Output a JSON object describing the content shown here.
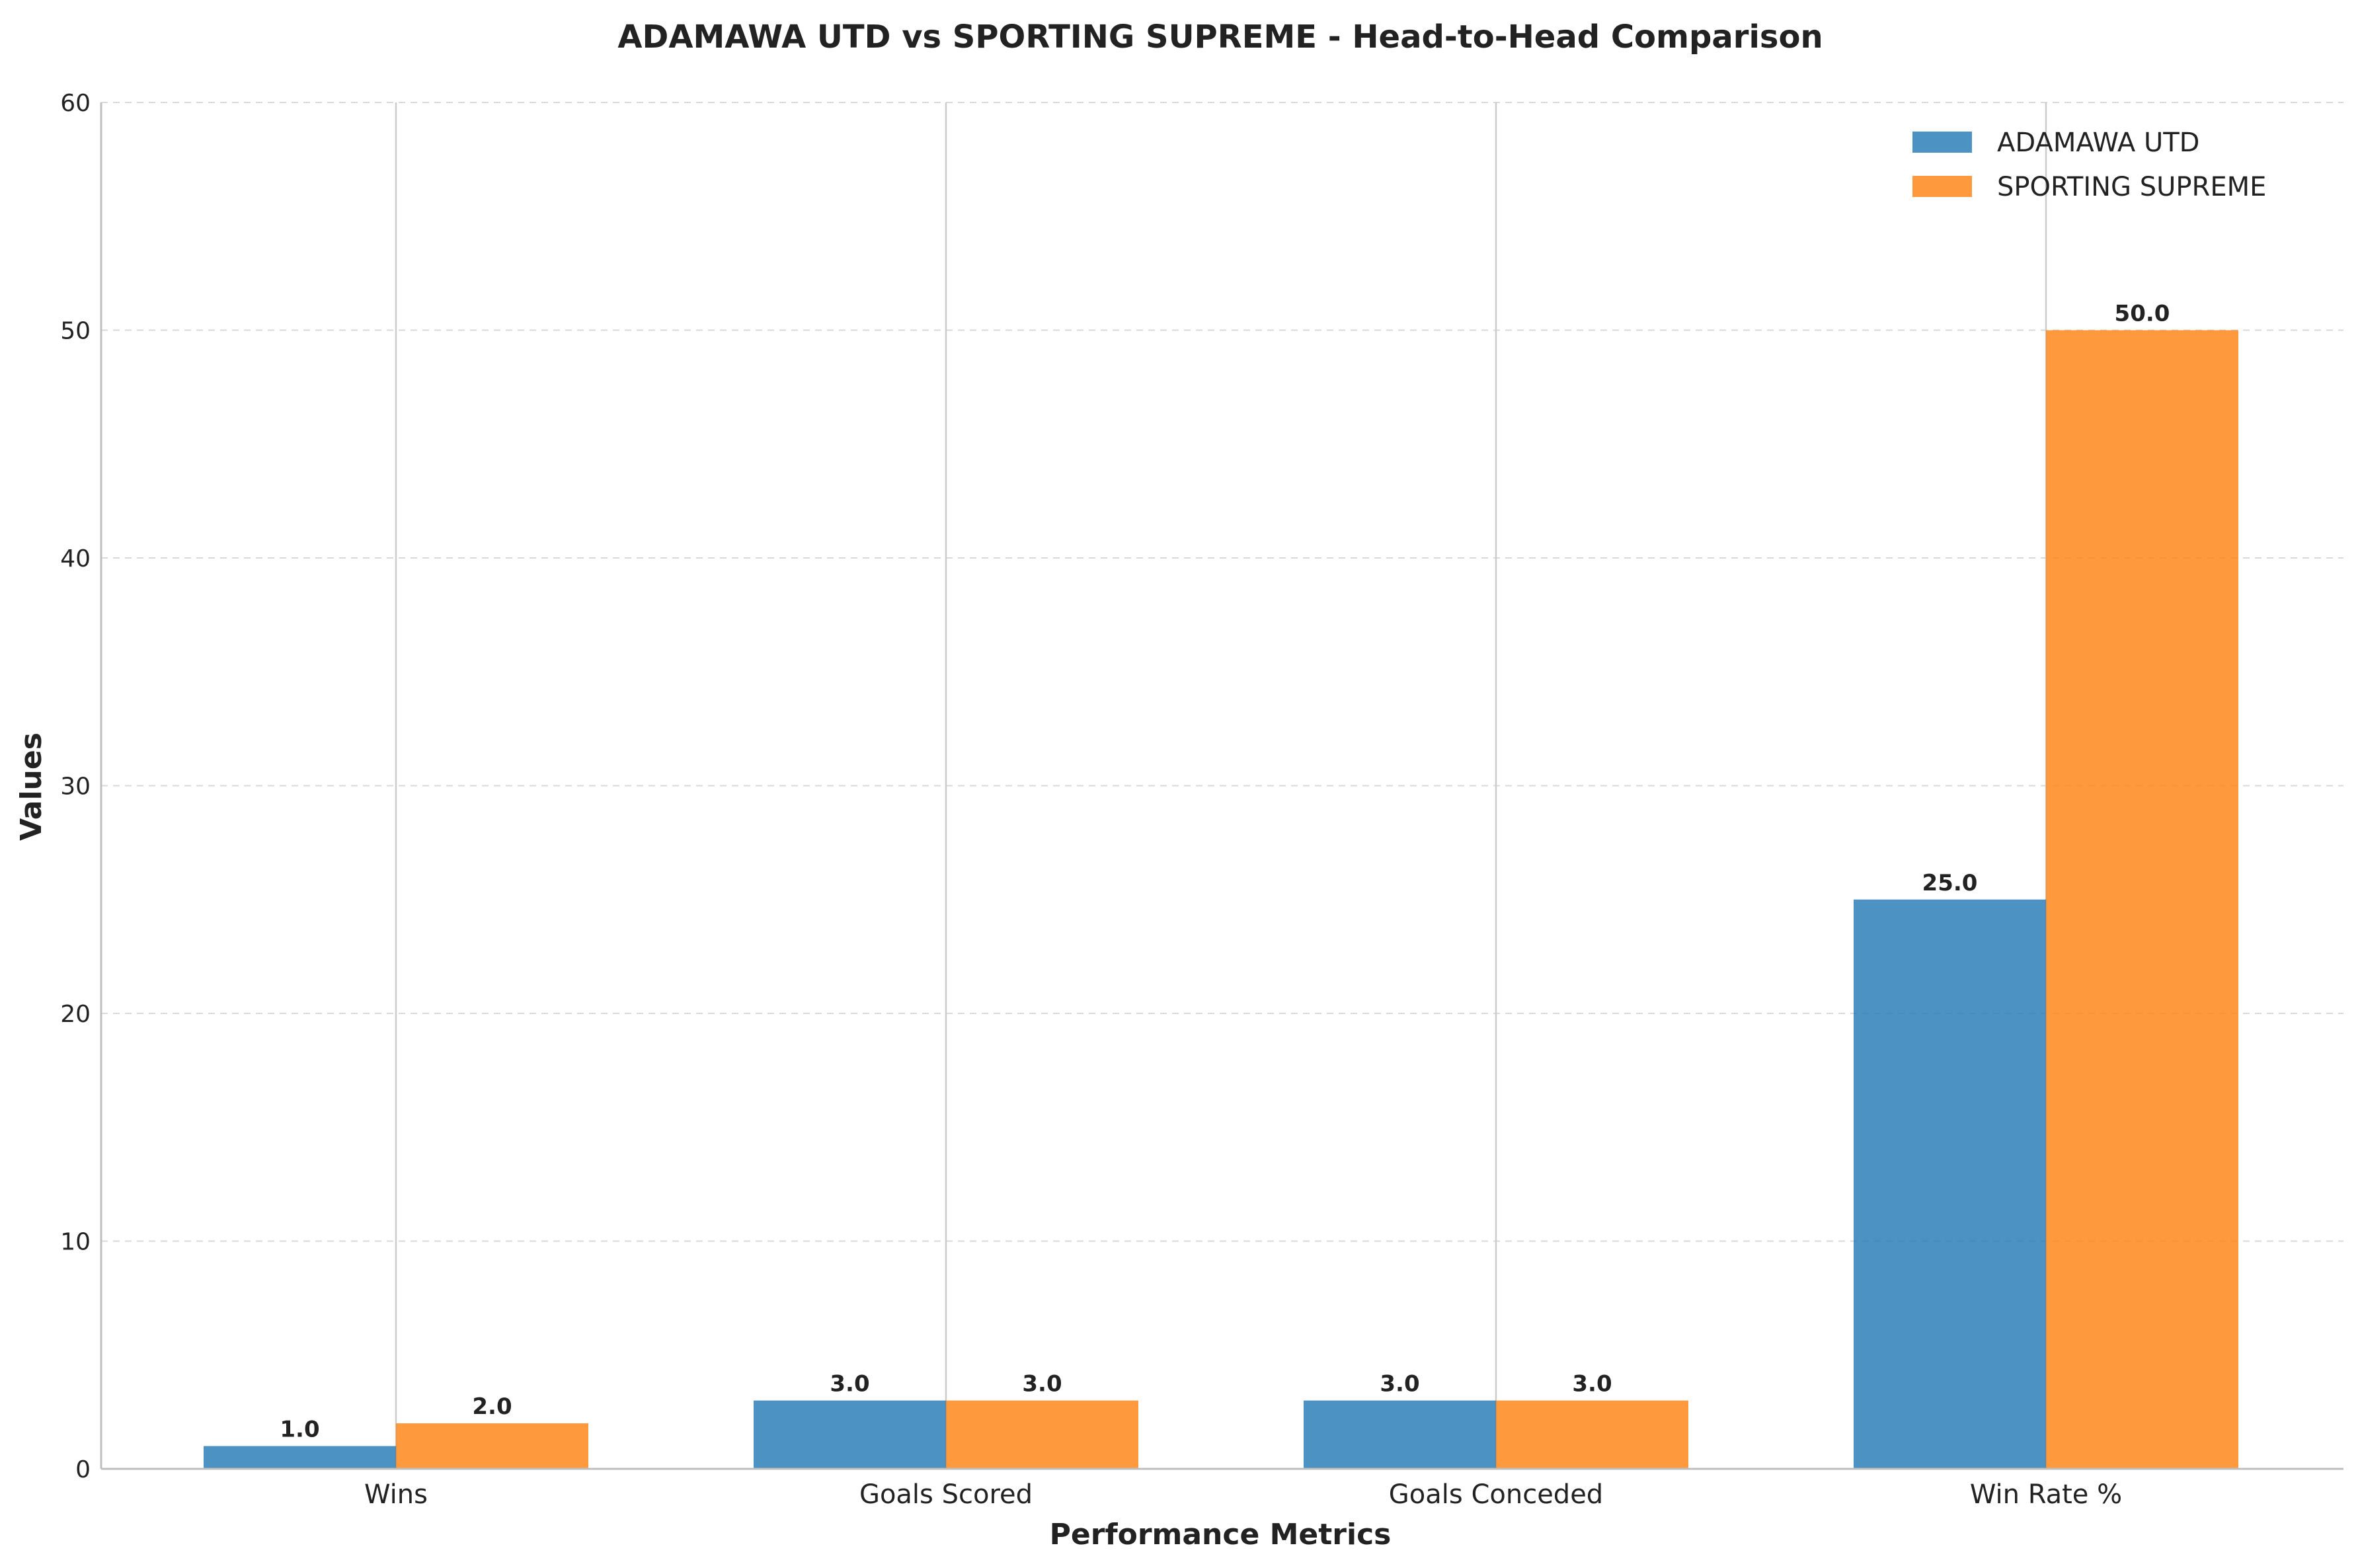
{
  "chart_data": {
    "type": "bar",
    "title": "ADAMAWA UTD vs SPORTING SUPREME - Head-to-Head Comparison",
    "xlabel": "Performance Metrics",
    "ylabel": "Values",
    "categories": [
      "Wins",
      "Goals Scored",
      "Goals Conceded",
      "Win Rate %"
    ],
    "series": [
      {
        "name": "ADAMAWA UTD",
        "color": "#1f77b4",
        "values": [
          1.0,
          3.0,
          3.0,
          25.0
        ]
      },
      {
        "name": "SPORTING SUPREME",
        "color": "#ff7f0e",
        "values": [
          2.0,
          3.0,
          3.0,
          50.0
        ]
      }
    ],
    "value_labels": [
      [
        "1.0",
        "3.0",
        "3.0",
        "25.0"
      ],
      [
        "2.0",
        "3.0",
        "3.0",
        "50.0"
      ]
    ],
    "ylim": [
      0,
      60
    ],
    "yticks": [
      0,
      10,
      20,
      30,
      40,
      50,
      60
    ],
    "ytick_labels": [
      "0",
      "10",
      "20",
      "30",
      "40",
      "50",
      "60"
    ],
    "grid": true,
    "legend_position": "top-right"
  }
}
